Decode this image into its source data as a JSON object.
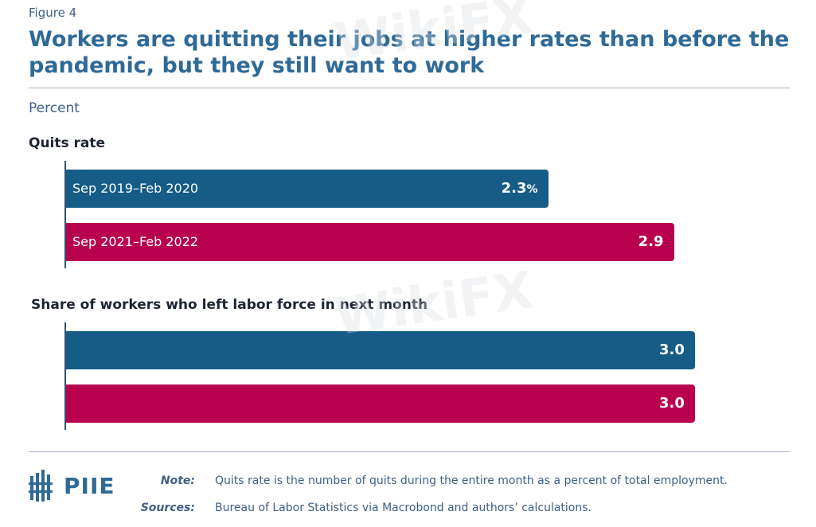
{
  "figure_label": "Figure 4",
  "title": "Workers are quitting their jobs at higher rates than before the pandemic, but they still want to work",
  "unit_label": "Percent",
  "colors": {
    "series_1": "#155c86",
    "series_2": "#b8004f",
    "title": "#2f6a97",
    "text": "#3d5f86"
  },
  "chart_data": {
    "type": "bar",
    "orientation": "horizontal",
    "ylabel": "Percent",
    "series_names": [
      "Sep 2019–Feb 2020",
      "Sep 2021–Feb 2022"
    ],
    "panels": [
      {
        "title": "Quits rate",
        "bars": [
          {
            "series": "Sep 2019–Feb 2020",
            "value": 2.3,
            "value_label": "2.3",
            "suffix": "%"
          },
          {
            "series": "Sep 2021–Feb 2022",
            "value": 2.9,
            "value_label": "2.9",
            "suffix": ""
          }
        ]
      },
      {
        "title": "Share of workers who left labor force in next month",
        "bars": [
          {
            "series": "Sep 2019–Feb 2020",
            "value": 3.0,
            "value_label": "3.0",
            "suffix": ""
          },
          {
            "series": "Sep 2021–Feb 2022",
            "value": 3.0,
            "value_label": "3.0",
            "suffix": ""
          }
        ]
      }
    ]
  },
  "footer": {
    "logo": "PIIE",
    "note_label": "Note:",
    "note_text": "Quits rate is the number of quits during the entire month as a percent of total employment.",
    "sources_label": "Sources:",
    "sources_text": "Bureau of Labor Statistics via Macrobond and authors’ calculations."
  },
  "watermark": "WikiFX"
}
